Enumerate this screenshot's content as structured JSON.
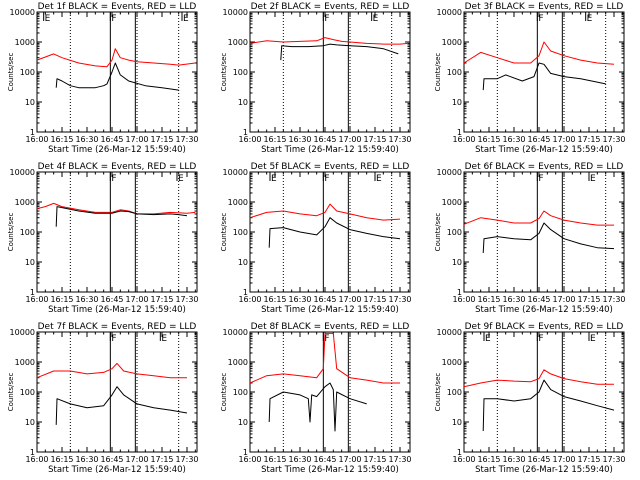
{
  "chart_data": [
    {
      "type": "line",
      "title": "Det 1f BLACK = Events, RED = LLD",
      "xlabel": "Start Time (26-Mar-12 15:59:40)",
      "ylabel": "Counts/sec",
      "xlim": [
        0,
        96
      ],
      "ylim": [
        1,
        10000
      ],
      "yscale": "log",
      "xticks": [
        "16:00",
        "16:15",
        "16:30",
        "16:45",
        "17:00",
        "17:15",
        "17:30"
      ],
      "yticks": [
        "1",
        "10",
        "100",
        "1000",
        "10000"
      ],
      "markers": [
        {
          "label": "E",
          "at": 4
        },
        {
          "label": "F",
          "at": 44
        },
        {
          "label": "E",
          "at": 87
        }
      ],
      "dotted_lines": [
        20,
        60,
        85
      ],
      "solid_lines": [
        44,
        59
      ],
      "series": [
        {
          "name": "RED = LLD",
          "color": "#ff0000",
          "x": [
            0,
            10,
            15,
            25,
            35,
            42,
            45,
            47,
            50,
            55,
            60,
            70,
            80,
            85,
            95
          ],
          "y": [
            250,
            400,
            300,
            200,
            160,
            150,
            250,
            600,
            300,
            250,
            220,
            200,
            180,
            170,
            200
          ]
        },
        {
          "name": "BLACK = Events",
          "color": "#000000",
          "x": [
            11.5,
            12,
            15,
            20,
            25,
            35,
            40,
            42,
            45,
            47,
            50,
            55,
            65,
            75,
            85
          ],
          "y": [
            30,
            60,
            50,
            35,
            30,
            30,
            35,
            40,
            100,
            200,
            80,
            50,
            35,
            30,
            25
          ]
        }
      ]
    },
    {
      "type": "line",
      "title": "Det 2f BLACK = Events, RED = LLD",
      "xlabel": "Start Time (26-Mar-12 15:59:40)",
      "ylabel": "Counts/sec",
      "xlim": [
        0,
        96
      ],
      "ylim": [
        1,
        10000
      ],
      "yscale": "log",
      "xticks": [
        "16:00",
        "16:15",
        "16:30",
        "16:45",
        "17:00",
        "17:15",
        "17:30"
      ],
      "yticks": [
        "1",
        "10",
        "100",
        "1000",
        "10000"
      ],
      "markers": [
        {
          "label": "F",
          "at": 44
        },
        {
          "label": "E",
          "at": 73
        }
      ],
      "dotted_lines": [
        20,
        60,
        85
      ],
      "solid_lines": [
        44,
        59
      ],
      "series": [
        {
          "name": "RED = LLD",
          "color": "#ff0000",
          "x": [
            0,
            10,
            20,
            30,
            40,
            45,
            50,
            55,
            60,
            70,
            80,
            90,
            95
          ],
          "y": [
            900,
            1100,
            1000,
            1050,
            1100,
            1400,
            1200,
            1050,
            1000,
            900,
            850,
            850,
            900
          ]
        },
        {
          "name": "BLACK = Events",
          "color": "#000000",
          "x": [
            18.5,
            19,
            25,
            35,
            44,
            48,
            52,
            60,
            70,
            80,
            89
          ],
          "y": [
            250,
            750,
            700,
            700,
            750,
            850,
            800,
            750,
            700,
            600,
            400
          ]
        }
      ]
    },
    {
      "type": "line",
      "title": "Det 3f BLACK = Events, RED = LLD",
      "xlabel": "Start Time (26-Mar-12 15:59:40)",
      "ylabel": "Counts/sec",
      "xlim": [
        0,
        96
      ],
      "ylim": [
        1,
        10000
      ],
      "yscale": "log",
      "xticks": [
        "16:00",
        "16:15",
        "16:30",
        "16:45",
        "17:00",
        "17:15",
        "17:30"
      ],
      "yticks": [
        "1",
        "10",
        "100",
        "1000",
        "10000"
      ],
      "markers": [
        {
          "label": "F",
          "at": 44
        },
        {
          "label": "E",
          "at": 73
        }
      ],
      "dotted_lines": [
        20,
        60,
        85
      ],
      "solid_lines": [
        44,
        59
      ],
      "series": [
        {
          "name": "RED = LLD",
          "color": "#ff0000",
          "x": [
            0,
            10,
            20,
            30,
            40,
            45,
            48,
            52,
            60,
            70,
            80,
            90
          ],
          "y": [
            200,
            450,
            300,
            200,
            200,
            350,
            1000,
            500,
            350,
            250,
            200,
            180
          ]
        },
        {
          "name": "BLACK = Events",
          "color": "#000000",
          "x": [
            11.5,
            12,
            20,
            25,
            35,
            42,
            45,
            48,
            52,
            60,
            70,
            85
          ],
          "y": [
            25,
            60,
            60,
            80,
            50,
            70,
            200,
            180,
            90,
            70,
            60,
            40
          ]
        }
      ]
    },
    {
      "type": "line",
      "title": "Det 4f BLACK = Events, RED = LLD",
      "xlabel": "Start Time (26-Mar-12 15:59:40)",
      "ylabel": "Counts/sec",
      "xlim": [
        0,
        96
      ],
      "ylim": [
        1,
        10000
      ],
      "yscale": "log",
      "xticks": [
        "16:00",
        "16:15",
        "16:30",
        "16:45",
        "17:00",
        "17:15",
        "17:30"
      ],
      "yticks": [
        "1",
        "10",
        "100",
        "1000",
        "10000"
      ],
      "markers": [
        {
          "label": "F",
          "at": 44
        },
        {
          "label": "E",
          "at": 84
        }
      ],
      "dotted_lines": [
        20,
        60,
        85
      ],
      "solid_lines": [
        44,
        59
      ],
      "series": [
        {
          "name": "RED = LLD",
          "color": "#ff0000",
          "x": [
            0,
            5,
            10,
            15,
            25,
            35,
            45,
            50,
            55,
            60,
            70,
            80,
            90,
            95
          ],
          "y": [
            600,
            700,
            900,
            700,
            550,
            450,
            450,
            550,
            500,
            400,
            400,
            450,
            420,
            450
          ]
        },
        {
          "name": "BLACK = Events",
          "color": "#000000",
          "x": [
            11.5,
            12,
            15,
            25,
            35,
            45,
            50,
            55,
            60,
            70,
            80,
            85,
            90
          ],
          "y": [
            150,
            700,
            650,
            500,
            420,
            420,
            500,
            480,
            400,
            380,
            400,
            380,
            350
          ]
        }
      ]
    },
    {
      "type": "line",
      "title": "Det 5f BLACK = Events, RED = LLD",
      "xlabel": "Start Time (26-Mar-12 15:59:40)",
      "ylabel": "Counts/sec",
      "xlim": [
        0,
        96
      ],
      "ylim": [
        1,
        10000
      ],
      "yscale": "log",
      "xticks": [
        "16:00",
        "16:15",
        "16:30",
        "16:45",
        "17:00",
        "17:15",
        "17:30"
      ],
      "yticks": [
        "1",
        "10",
        "100",
        "1000",
        "10000"
      ],
      "markers": [
        {
          "label": "E",
          "at": 12
        },
        {
          "label": "F",
          "at": 44
        },
        {
          "label": "E",
          "at": 75
        }
      ],
      "dotted_lines": [
        20,
        60,
        85
      ],
      "solid_lines": [
        44,
        59
      ],
      "series": [
        {
          "name": "RED = LLD",
          "color": "#ff0000",
          "x": [
            0,
            10,
            20,
            30,
            40,
            45,
            48,
            52,
            60,
            70,
            80,
            90
          ],
          "y": [
            300,
            450,
            500,
            400,
            350,
            450,
            850,
            500,
            400,
            300,
            250,
            270
          ]
        },
        {
          "name": "BLACK = Events",
          "color": "#000000",
          "x": [
            11.5,
            12,
            20,
            30,
            40,
            45,
            48,
            52,
            60,
            70,
            80,
            90
          ],
          "y": [
            30,
            130,
            140,
            100,
            80,
            150,
            300,
            200,
            120,
            90,
            70,
            60
          ]
        }
      ]
    },
    {
      "type": "line",
      "title": "Det 6f BLACK = Events, RED = LLD",
      "xlabel": "Start Time (26-Mar-12 15:59:40)",
      "ylabel": "Counts/sec",
      "xlim": [
        0,
        96
      ],
      "ylim": [
        1,
        10000
      ],
      "yscale": "log",
      "xticks": [
        "16:00",
        "16:15",
        "16:30",
        "16:45",
        "17:00",
        "17:15",
        "17:30"
      ],
      "yticks": [
        "1",
        "10",
        "100",
        "1000",
        "10000"
      ],
      "markers": [
        {
          "label": "F",
          "at": 44
        },
        {
          "label": "E",
          "at": 75
        }
      ],
      "dotted_lines": [
        20,
        60,
        85
      ],
      "solid_lines": [
        44,
        59
      ],
      "series": [
        {
          "name": "RED = LLD",
          "color": "#ff0000",
          "x": [
            0,
            10,
            20,
            30,
            40,
            45,
            48,
            52,
            60,
            70,
            80,
            90
          ],
          "y": [
            180,
            300,
            250,
            200,
            200,
            280,
            500,
            350,
            250,
            200,
            170,
            170
          ]
        },
        {
          "name": "BLACK = Events",
          "color": "#000000",
          "x": [
            11.5,
            12,
            20,
            30,
            40,
            45,
            48,
            52,
            60,
            70,
            80,
            90
          ],
          "y": [
            20,
            60,
            70,
            60,
            55,
            90,
            200,
            120,
            60,
            40,
            30,
            28
          ]
        }
      ]
    },
    {
      "type": "line",
      "title": "Det 7f BLACK = Events, RED = LLD",
      "xlabel": "Start Time (26-Mar-12 15:59:40)",
      "ylabel": "Counts/sec",
      "xlim": [
        0,
        96
      ],
      "ylim": [
        1,
        10000
      ],
      "yscale": "log",
      "xticks": [
        "16:00",
        "16:15",
        "16:30",
        "16:45",
        "17:00",
        "17:15",
        "17:30"
      ],
      "yticks": [
        "1",
        "10",
        "100",
        "1000",
        "10000"
      ],
      "markers": [
        {
          "label": "F",
          "at": 44
        },
        {
          "label": "E",
          "at": 74
        }
      ],
      "dotted_lines": [
        20,
        60,
        85
      ],
      "solid_lines": [
        44,
        59
      ],
      "series": [
        {
          "name": "RED = LLD",
          "color": "#ff0000",
          "x": [
            0,
            10,
            20,
            30,
            40,
            45,
            48,
            52,
            60,
            70,
            80,
            90
          ],
          "y": [
            300,
            500,
            500,
            400,
            450,
            600,
            900,
            500,
            400,
            350,
            300,
            300
          ]
        },
        {
          "name": "BLACK = Events",
          "color": "#000000",
          "x": [
            11.5,
            12,
            20,
            30,
            40,
            45,
            48,
            52,
            60,
            70,
            80,
            90
          ],
          "y": [
            8,
            60,
            40,
            30,
            35,
            80,
            150,
            80,
            40,
            30,
            25,
            20
          ]
        }
      ]
    },
    {
      "type": "line",
      "title": "Det 8f BLACK = Events, RED = LLD",
      "xlabel": "Start Time (26-Mar-12 15:59:40)",
      "ylabel": "Counts/sec",
      "xlim": [
        0,
        96
      ],
      "ylim": [
        1,
        10000
      ],
      "yscale": "log",
      "xticks": [
        "16:00",
        "16:15",
        "16:30",
        "16:45",
        "17:00",
        "17:15",
        "17:30"
      ],
      "yticks": [
        "1",
        "10",
        "100",
        "1000",
        "10000"
      ],
      "markers": [
        {
          "label": "F",
          "at": 44
        }
      ],
      "dotted_lines": [
        20,
        60,
        85
      ],
      "solid_lines": [
        44,
        59
      ],
      "series": [
        {
          "name": "RED = LLD",
          "color": "#ff0000",
          "x": [
            0,
            10,
            20,
            30,
            40,
            44,
            45,
            48,
            50,
            52,
            60,
            70,
            80,
            90
          ],
          "y": [
            200,
            350,
            400,
            350,
            300,
            600,
            9000,
            9000,
            9000,
            600,
            300,
            250,
            200,
            200
          ]
        },
        {
          "name": "BLACK = Events",
          "color": "#000000",
          "x": [
            11.5,
            12,
            20,
            30,
            35,
            36,
            37,
            40,
            45,
            48,
            50,
            51,
            52,
            60,
            70
          ],
          "y": [
            10,
            60,
            100,
            80,
            60,
            10,
            80,
            70,
            150,
            200,
            120,
            5,
            100,
            60,
            40
          ]
        }
      ]
    },
    {
      "type": "line",
      "title": "Det 9f BLACK = Events, RED = LLD",
      "xlabel": "Start Time (26-Mar-12 15:59:40)",
      "ylabel": "Counts/sec",
      "xlim": [
        0,
        96
      ],
      "ylim": [
        1,
        10000
      ],
      "yscale": "log",
      "xticks": [
        "16:00",
        "16:15",
        "16:30",
        "16:45",
        "17:00",
        "17:15",
        "17:30"
      ],
      "yticks": [
        "1",
        "10",
        "100",
        "1000",
        "10000"
      ],
      "markers": [
        {
          "label": "E",
          "at": 12
        },
        {
          "label": "F",
          "at": 44
        },
        {
          "label": "E",
          "at": 75
        }
      ],
      "dotted_lines": [
        20,
        60,
        85
      ],
      "solid_lines": [
        44,
        59
      ],
      "series": [
        {
          "name": "RED = LLD",
          "color": "#ff0000",
          "x": [
            0,
            10,
            20,
            30,
            40,
            45,
            48,
            52,
            60,
            70,
            80,
            90
          ],
          "y": [
            150,
            200,
            250,
            230,
            220,
            280,
            550,
            400,
            280,
            220,
            180,
            180
          ]
        },
        {
          "name": "BLACK = Events",
          "color": "#000000",
          "x": [
            11.5,
            12,
            20,
            30,
            40,
            45,
            48,
            52,
            60,
            70,
            80,
            90
          ],
          "y": [
            5,
            60,
            60,
            50,
            60,
            100,
            250,
            120,
            70,
            50,
            35,
            25
          ]
        }
      ]
    }
  ]
}
